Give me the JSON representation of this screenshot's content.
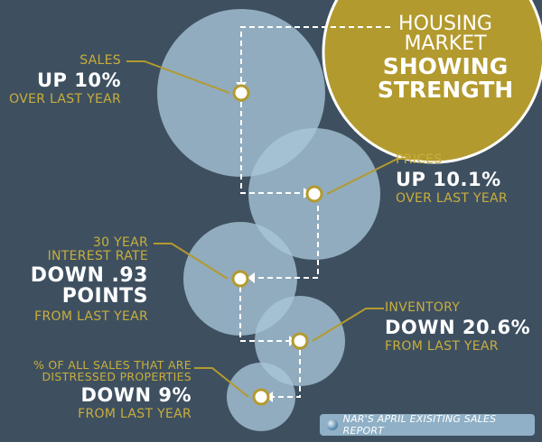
{
  "title": {
    "line1": "Housing",
    "line2": "Market",
    "line3": "Showing",
    "line4": "Strength"
  },
  "stats": {
    "sales": {
      "label": "Sales",
      "value": "Up 10%",
      "note": "Over last year"
    },
    "prices": {
      "label": "Prices",
      "value": "Up 10.1%",
      "note": "Over last year"
    },
    "interest": {
      "label1": "30 Year",
      "label2": "Interest Rate",
      "value1": "Down .93",
      "value2": "Points",
      "note": "From last year"
    },
    "inventory": {
      "label": "Inventory",
      "value": "Down 20.6%",
      "note": "From last year"
    },
    "distressed": {
      "label1": "% of all sales that are",
      "label2": "distressed properties",
      "value": "Down 9%",
      "note": "From last year"
    }
  },
  "source": {
    "text": "NAR's April Exisiting Sales Report",
    "icon": "globe-icon"
  },
  "colors": {
    "background": "#3e5060",
    "gold": "#b39a2e",
    "gold_text": "#c9ae3c",
    "bubble": "#a9c6d8",
    "white": "#ffffff"
  }
}
